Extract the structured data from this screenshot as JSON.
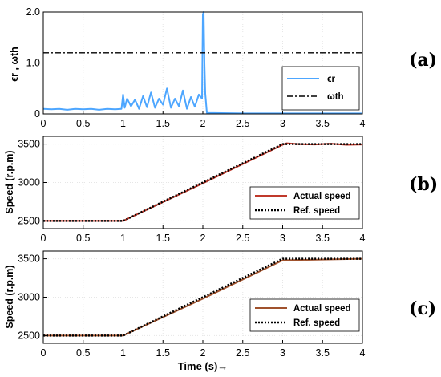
{
  "chart_data": [
    {
      "type": "line",
      "panel_label": "(a)",
      "ylabel": "ϵr , ωth",
      "xlim": [
        0,
        4
      ],
      "ylim": [
        0,
        2
      ],
      "xticks": [
        "0",
        "0.5",
        "1",
        "1.5",
        "2",
        "2.5",
        "3",
        "3.5",
        "4"
      ],
      "yticks": [
        "0",
        "1.0",
        "2.0"
      ],
      "grid": true,
      "legend_position": "lower-right",
      "series": [
        {
          "name": "ϵr",
          "color": "#4da6ff",
          "style": "solid",
          "x": [
            0,
            0.1,
            0.2,
            0.3,
            0.4,
            0.5,
            0.6,
            0.7,
            0.8,
            0.9,
            0.98,
            1.0,
            1.02,
            1.05,
            1.1,
            1.15,
            1.2,
            1.25,
            1.3,
            1.35,
            1.4,
            1.45,
            1.5,
            1.55,
            1.6,
            1.65,
            1.7,
            1.75,
            1.8,
            1.85,
            1.9,
            1.95,
            1.99,
            2.0,
            2.01,
            2.02,
            2.03,
            2.05,
            2.5,
            3.0,
            3.5,
            4.0
          ],
          "y": [
            0.1,
            0.09,
            0.1,
            0.08,
            0.1,
            0.09,
            0.1,
            0.08,
            0.1,
            0.09,
            0.1,
            0.38,
            0.12,
            0.3,
            0.15,
            0.28,
            0.1,
            0.35,
            0.13,
            0.42,
            0.12,
            0.3,
            0.18,
            0.5,
            0.12,
            0.3,
            0.15,
            0.46,
            0.1,
            0.33,
            0.14,
            0.38,
            0.3,
            1.95,
            2.0,
            1.0,
            0.4,
            0.02,
            0.01,
            0.01,
            0.01,
            0.01
          ]
        },
        {
          "name": "ωth",
          "color": "#000000",
          "style": "dashdot",
          "x": [
            0,
            4
          ],
          "y": [
            1.2,
            1.2
          ]
        }
      ]
    },
    {
      "type": "line",
      "panel_label": "(b)",
      "ylabel": "Speed (r.p.m)",
      "xlim": [
        0,
        4
      ],
      "ylim": [
        2400,
        3600
      ],
      "xticks": [
        "0",
        "0.5",
        "1",
        "1.5",
        "2",
        "2.5",
        "3",
        "3.5",
        "4"
      ],
      "yticks": [
        "2500",
        "3000",
        "3500"
      ],
      "grid": true,
      "legend_position": "lower-right",
      "series": [
        {
          "name": "Actual speed",
          "color": "#c0392b",
          "style": "solid",
          "x": [
            0,
            1.0,
            2.0,
            3.0,
            3.05,
            3.2,
            3.4,
            3.6,
            3.8,
            4.0
          ],
          "y": [
            2500,
            2500,
            2990,
            3490,
            3510,
            3500,
            3495,
            3505,
            3490,
            3495
          ]
        },
        {
          "name": "Ref. speed",
          "color": "#000000",
          "style": "dotted",
          "x": [
            0,
            1.0,
            3.0,
            4.0
          ],
          "y": [
            2500,
            2500,
            3500,
            3500
          ]
        }
      ]
    },
    {
      "type": "line",
      "panel_label": "(c)",
      "ylabel": "Speed (r.p.m)",
      "xlabel": "Time (s)→",
      "xlim": [
        0,
        4
      ],
      "ylim": [
        2400,
        3600
      ],
      "xticks": [
        "0",
        "0.5",
        "1",
        "1.5",
        "2",
        "2.5",
        "3",
        "3.5",
        "4"
      ],
      "yticks": [
        "2500",
        "3000",
        "3500"
      ],
      "grid": true,
      "legend_position": "lower-right",
      "series": [
        {
          "name": "Actual speed",
          "color": "#a0522d",
          "style": "solid",
          "x": [
            0,
            1.0,
            2.0,
            3.0,
            4.0
          ],
          "y": [
            2500,
            2500,
            2980,
            3480,
            3500
          ]
        },
        {
          "name": "Ref. speed",
          "color": "#000000",
          "style": "dotted",
          "x": [
            0,
            1.0,
            3.0,
            4.0
          ],
          "y": [
            2500,
            2500,
            3500,
            3500
          ]
        }
      ]
    }
  ]
}
